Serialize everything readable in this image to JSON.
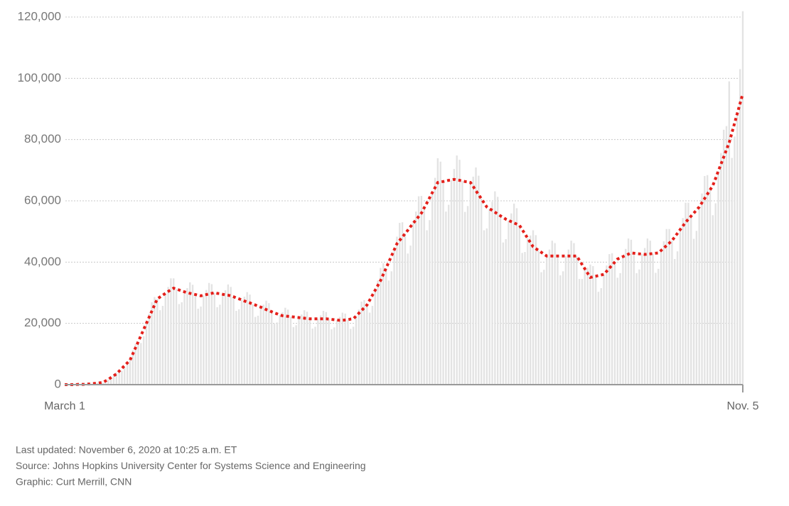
{
  "chart_data": {
    "type": "bar",
    "categories": [
      "March 1",
      null,
      null,
      null,
      null,
      null,
      null,
      null,
      null,
      null,
      null,
      null,
      null,
      null,
      null,
      null,
      null,
      null,
      null,
      null,
      null,
      null,
      null,
      null,
      null,
      null,
      null,
      null,
      null,
      null,
      null,
      null,
      null,
      null,
      null,
      null,
      null,
      null,
      null,
      null,
      null,
      null,
      null,
      null,
      null,
      null,
      null,
      null,
      null,
      null,
      null,
      null,
      null,
      null,
      null,
      null,
      null,
      null,
      null,
      null,
      null,
      null,
      null,
      null,
      null,
      null,
      null,
      null,
      null,
      null,
      null,
      null,
      null,
      null,
      null,
      null,
      null,
      null,
      null,
      null,
      null,
      null,
      null,
      null,
      null,
      null,
      null,
      null,
      null,
      null,
      null,
      null,
      null,
      null,
      null,
      null,
      null,
      null,
      null,
      null,
      null,
      null,
      null,
      null,
      null,
      null,
      null,
      null,
      null,
      null,
      null,
      null,
      null,
      null,
      null,
      null,
      null,
      null,
      null,
      null,
      null,
      null,
      null,
      null,
      null,
      null,
      null,
      null,
      null,
      null,
      null,
      null,
      null,
      null,
      null,
      null,
      null,
      null,
      null,
      null,
      null,
      null,
      null,
      null,
      null,
      null,
      null,
      null,
      null,
      null,
      null,
      null,
      null,
      null,
      null,
      null,
      null,
      null,
      null,
      null,
      null,
      null,
      null,
      null,
      null,
      null,
      null,
      null,
      null,
      null,
      null,
      null,
      null,
      null,
      null,
      null,
      null,
      null,
      null,
      null,
      null,
      null,
      null,
      null,
      null,
      null,
      null,
      null,
      null,
      null,
      null,
      null,
      null,
      null,
      null,
      null,
      null,
      null,
      null,
      null,
      null,
      null,
      null,
      null,
      null,
      null,
      null,
      null,
      null,
      null,
      null,
      null,
      null,
      null,
      null,
      null,
      null,
      null,
      null,
      null,
      null,
      null,
      null,
      null,
      null,
      null,
      null,
      null,
      null,
      null,
      null,
      null,
      null,
      null,
      null,
      null,
      null,
      null,
      null,
      null,
      null,
      null,
      null,
      null,
      null,
      null,
      null,
      null,
      null,
      "Nov. 5"
    ],
    "series": [
      {
        "type": "bar",
        "color": "#e3e3e3",
        "values": [
          0,
          0,
          0,
          0,
          0,
          100,
          100,
          100,
          200,
          200,
          300,
          400,
          600,
          600,
          600,
          1100,
          1700,
          2400,
          3200,
          3900,
          4400,
          4500,
          5500,
          7100,
          8400,
          11200,
          13200,
          14000,
          13600,
          15800,
          20000,
          23100,
          26900,
          28600,
          28000,
          24300,
          25700,
          29800,
          31900,
          34700,
          34700,
          31200,
          26300,
          26900,
          30300,
          31500,
          33400,
          32600,
          29400,
          24800,
          25500,
          29200,
          30900,
          33200,
          32800,
          30000,
          25300,
          26100,
          29500,
          30800,
          32700,
          31900,
          28700,
          24100,
          24600,
          27700,
          28700,
          30200,
          29400,
          26300,
          22100,
          22500,
          25300,
          26100,
          27400,
          26600,
          23800,
          19900,
          20300,
          22700,
          23600,
          25100,
          24500,
          22200,
          18800,
          19400,
          21900,
          22900,
          24300,
          23800,
          21500,
          18300,
          18900,
          21500,
          22600,
          24100,
          23700,
          21400,
          18100,
          18700,
          21100,
          22100,
          23500,
          23200,
          21200,
          18200,
          18900,
          22400,
          24500,
          27100,
          27600,
          26000,
          23500,
          25700,
          30800,
          34000,
          38100,
          39600,
          38000,
          34000,
          37000,
          44000,
          48300,
          52800,
          53000,
          49300,
          42800,
          45400,
          52700,
          56500,
          61500,
          61600,
          57700,
          50400,
          53700,
          62700,
          67500,
          73900,
          72800,
          66300,
          56500,
          58700,
          66800,
          70400,
          74800,
          73400,
          66500,
          56400,
          58300,
          66000,
          67900,
          70900,
          68200,
          60700,
          50400,
          51000,
          57400,
          59700,
          63100,
          61300,
          55100,
          46400,
          47500,
          53600,
          55900,
          59100,
          57600,
          52000,
          43000,
          43300,
          47800,
          48700,
          50400,
          48800,
          43800,
          36700,
          37500,
          42000,
          44100,
          47000,
          46200,
          42000,
          35700,
          37000,
          42000,
          44100,
          47000,
          46200,
          42000,
          34500,
          34500,
          37800,
          38200,
          39200,
          38700,
          35400,
          30300,
          31500,
          36000,
          38900,
          42600,
          42900,
          40000,
          34900,
          36400,
          41800,
          44300,
          47700,
          47300,
          42900,
          36400,
          37600,
          42600,
          44600,
          47700,
          47000,
          42800,
          36500,
          37800,
          43800,
          46800,
          50800,
          50800,
          47000,
          41000,
          43500,
          50600,
          54400,
          59400,
          59400,
          55000,
          47600,
          50200,
          58000,
          62400,
          68100,
          68400,
          63600,
          55300,
          59200,
          69700,
          75600,
          83200,
          84400,
          99000,
          74000,
          81000,
          89000,
          103000,
          121900
        ]
      },
      {
        "type": "line",
        "color": "#e4201b",
        "values": [
          0,
          0,
          0,
          0,
          0,
          100,
          100,
          100,
          200,
          200,
          300,
          400,
          500,
          600,
          700,
          1200,
          1700,
          2300,
          2900,
          3500,
          4400,
          5300,
          6200,
          7100,
          8000,
          10000,
          12000,
          14000,
          16000,
          18000,
          20000,
          22000,
          24000,
          26000,
          28000,
          28600,
          29200,
          29800,
          30400,
          31000,
          31500,
          31200,
          30900,
          30600,
          30300,
          30000,
          29800,
          29600,
          29400,
          29200,
          29000,
          29200,
          29400,
          29600,
          29800,
          30000,
          29800,
          29700,
          29500,
          29300,
          29200,
          29000,
          28700,
          28300,
          28000,
          27700,
          27300,
          27000,
          26700,
          26300,
          26000,
          25600,
          25300,
          24900,
          24500,
          24200,
          23800,
          23400,
          23100,
          22700,
          22500,
          22400,
          22300,
          22200,
          22100,
          22000,
          21900,
          21800,
          21700,
          21600,
          21500,
          21500,
          21500,
          21500,
          21500,
          21500,
          21500,
          21400,
          21300,
          21200,
          21100,
          21000,
          21000,
          21100,
          21200,
          21400,
          21500,
          22400,
          23300,
          24200,
          25100,
          26000,
          27600,
          29200,
          30800,
          32400,
          34000,
          36000,
          38000,
          40000,
          42000,
          44000,
          46000,
          47100,
          48200,
          49300,
          50400,
          51600,
          52700,
          53800,
          54900,
          56000,
          57700,
          59300,
          61000,
          62700,
          64300,
          66000,
          66200,
          66300,
          66500,
          66700,
          66800,
          67000,
          66800,
          66700,
          66500,
          66300,
          66200,
          66000,
          64700,
          63300,
          62000,
          60700,
          59300,
          58000,
          57400,
          56900,
          56300,
          55700,
          55100,
          54600,
          54000,
          53600,
          53200,
          52800,
          52400,
          52000,
          50600,
          49200,
          47800,
          46400,
          45000,
          44400,
          43800,
          43200,
          42600,
          42000,
          42000,
          42000,
          42000,
          42000,
          42000,
          42000,
          42000,
          42000,
          42000,
          42000,
          42000,
          40600,
          39200,
          37800,
          36400,
          35000,
          35200,
          35400,
          35600,
          35800,
          36000,
          37000,
          38000,
          39000,
          40000,
          41000,
          41400,
          41800,
          42200,
          42600,
          43000,
          42900,
          42800,
          42700,
          42600,
          42500,
          42600,
          42700,
          42800,
          42900,
          43000,
          43800,
          44600,
          45400,
          46200,
          47000,
          48200,
          49400,
          50600,
          51800,
          53000,
          54000,
          55000,
          56000,
          57000,
          58000,
          59400,
          60800,
          62200,
          63600,
          65000,
          67300,
          69700,
          72000,
          74300,
          76700,
          79000,
          82200,
          85400,
          88600,
          91800,
          95000
        ]
      }
    ],
    "ylim": [
      0,
      120000
    ],
    "yticks": [
      0,
      {
        "value": 20000,
        "label": "20,000"
      },
      {
        "value": 40000,
        "label": "40,000"
      },
      {
        "value": 60000,
        "label": "60,000"
      },
      {
        "value": 80000,
        "label": "80,000"
      },
      {
        "value": 100000,
        "label": "100,000"
      },
      {
        "value": 120000,
        "label": "120,000"
      }
    ],
    "grid": true,
    "footnotes": [
      "Last updated: November 6, 2020 at 10:25 a.m. ET",
      "Source: Johns Hopkins University Center for Systems Science and Engineering",
      "Graphic: Curt Merrill, CNN"
    ]
  }
}
